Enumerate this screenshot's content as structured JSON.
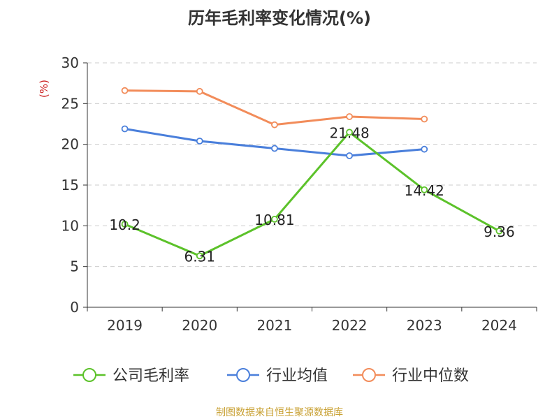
{
  "chart_data": {
    "type": "line",
    "title": "历年毛利率变化情况(%)",
    "ylabel": "(%)",
    "categories": [
      "2019",
      "2020",
      "2021",
      "2022",
      "2023",
      "2024"
    ],
    "ylim": [
      0,
      30
    ],
    "yticks": [
      0,
      5,
      10,
      15,
      20,
      25,
      30
    ],
    "grid": true,
    "legend_position": "bottom",
    "series": [
      {
        "name": "公司毛利率",
        "color": "#5cc22a",
        "values": [
          10.2,
          6.31,
          10.81,
          21.48,
          14.42,
          9.36
        ],
        "labels": [
          "10.2",
          "6.31",
          "10.81",
          "21.48",
          "14.42",
          "9.36"
        ],
        "show_labels": true
      },
      {
        "name": "行业均值",
        "color": "#4a7fdb",
        "values": [
          21.9,
          20.4,
          19.5,
          18.6,
          19.4,
          null
        ],
        "show_labels": false
      },
      {
        "name": "行业中位数",
        "color": "#f28c5a",
        "values": [
          26.6,
          26.5,
          22.4,
          23.4,
          23.1,
          null
        ],
        "show_labels": false
      }
    ]
  },
  "footer": {
    "source": "制图数据来自恒生聚源数据库"
  }
}
